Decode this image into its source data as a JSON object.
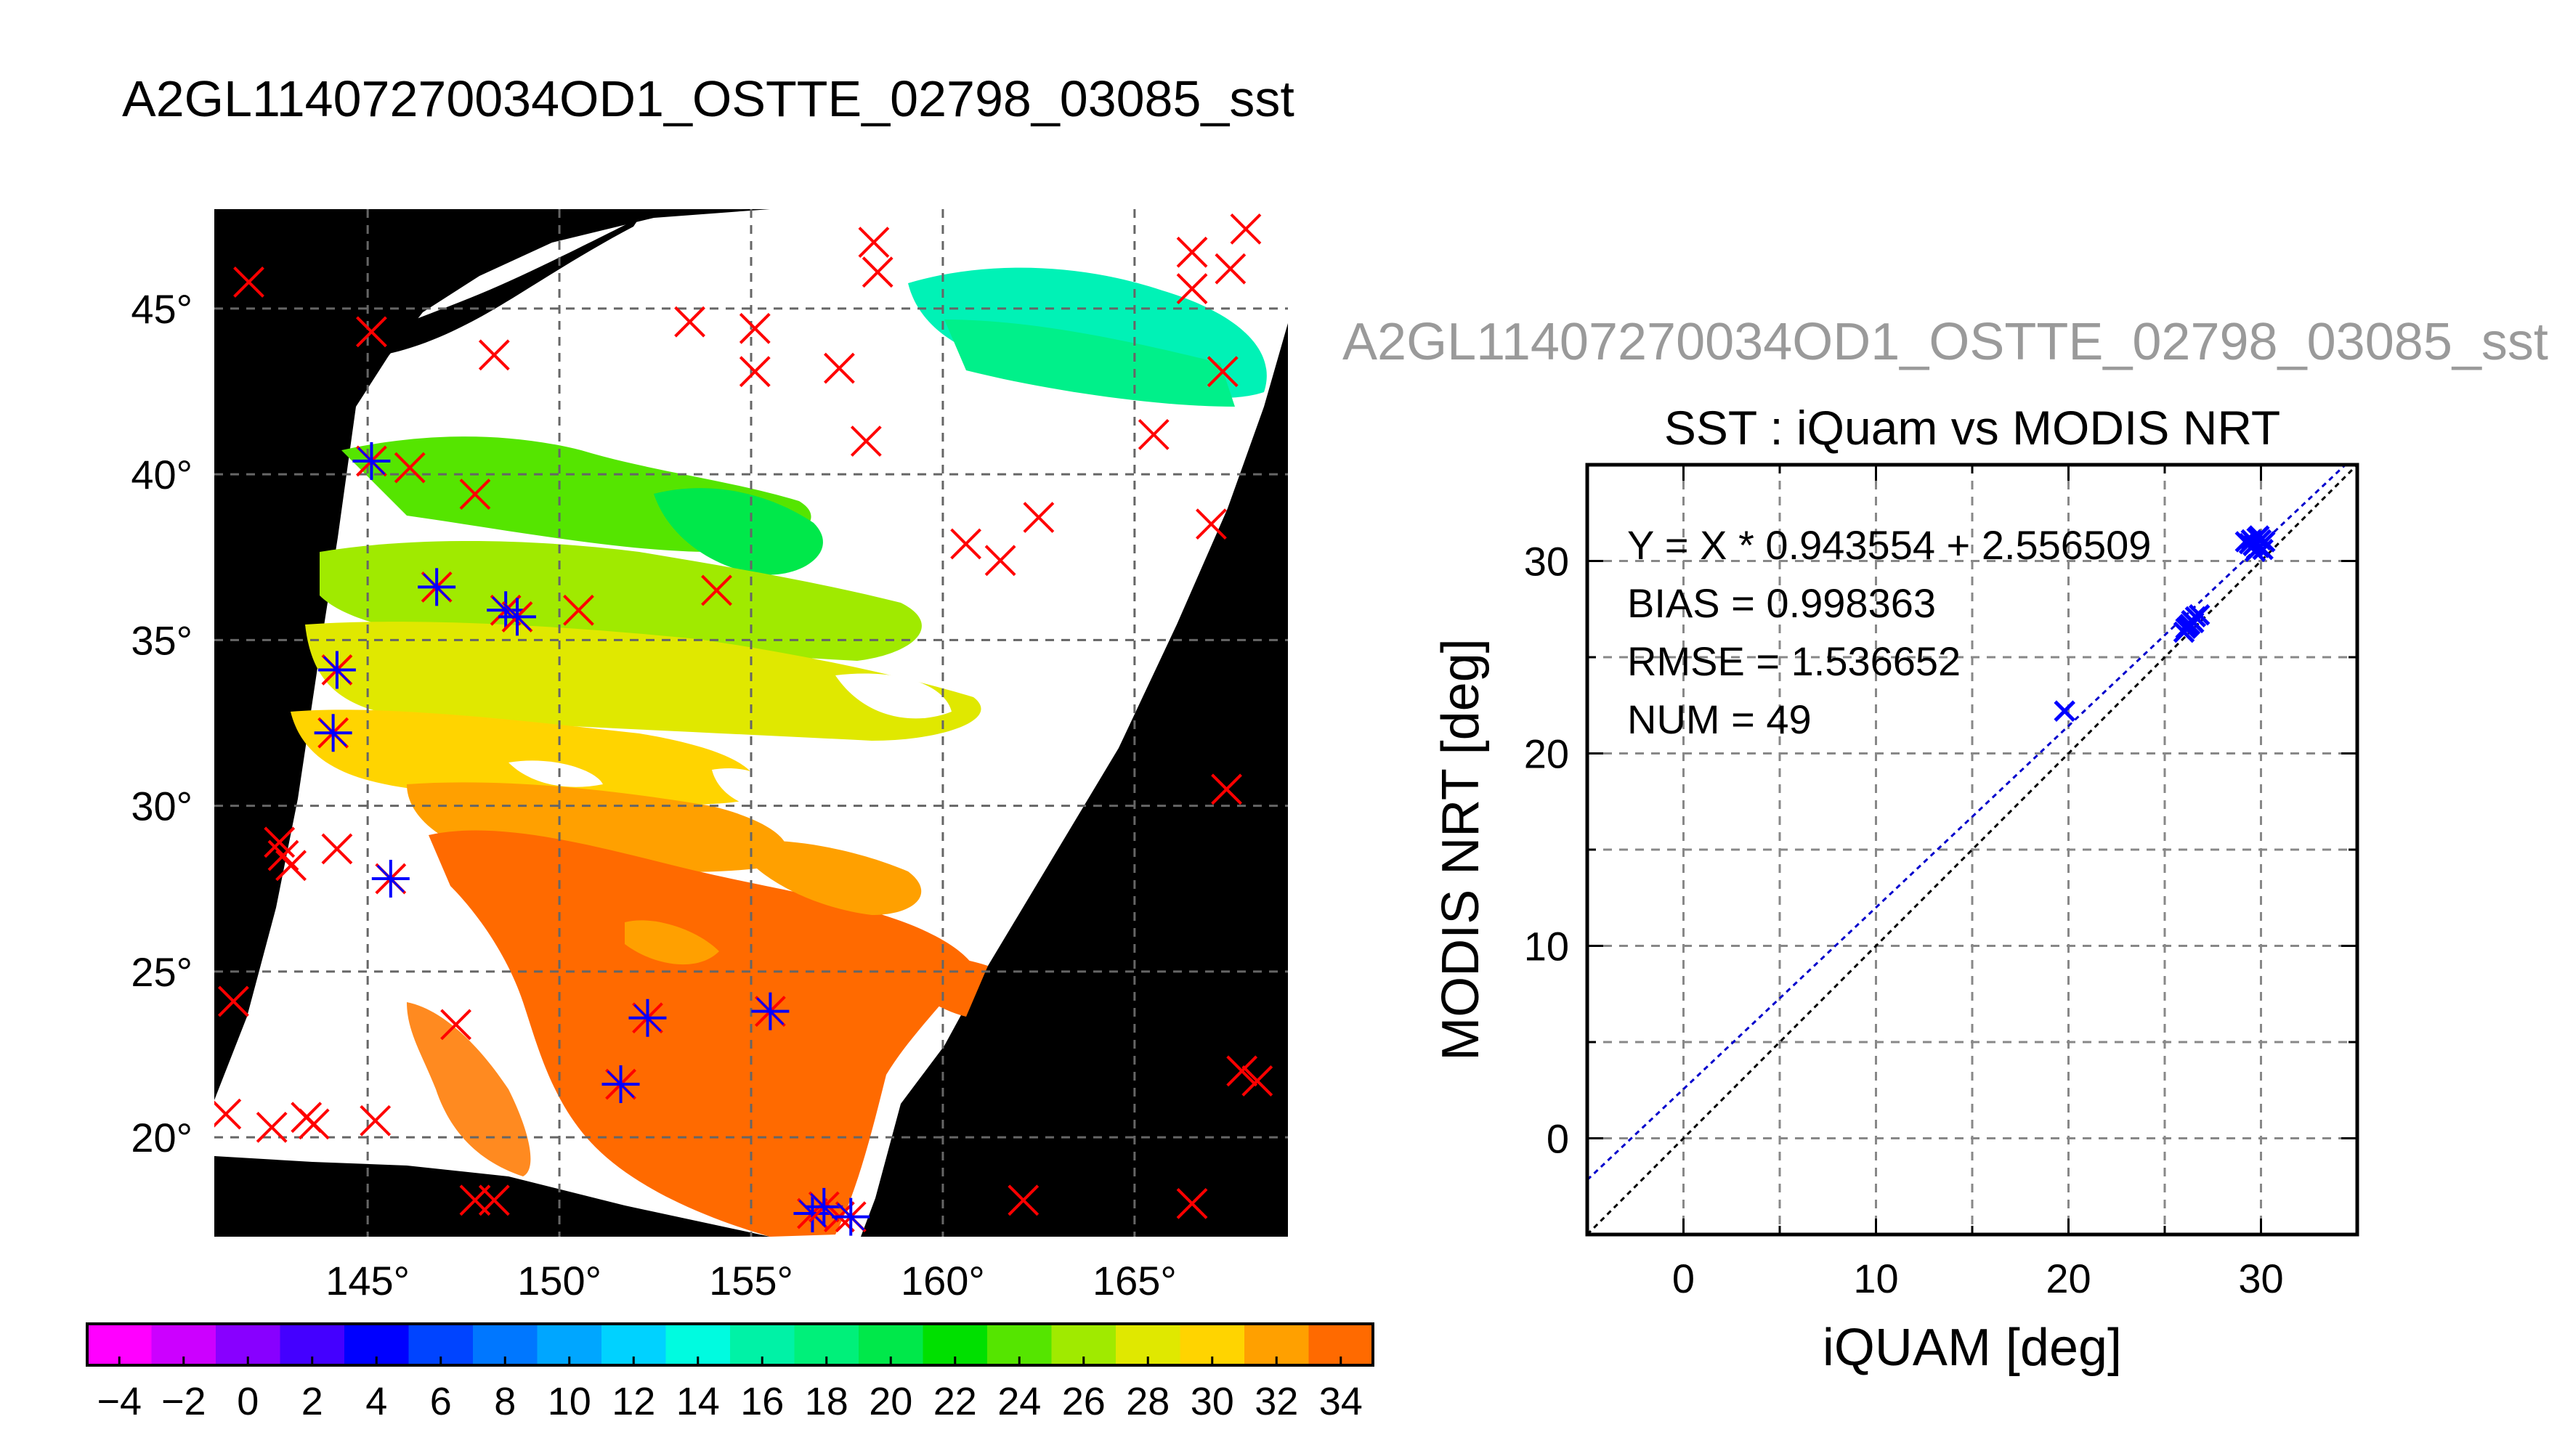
{
  "main_title": "A2GL11407270034OD1_OSTTE_02798_03085_sst",
  "map": {
    "lon_ticks": [
      145,
      150,
      155,
      160,
      165
    ],
    "lat_ticks": [
      20,
      25,
      30,
      35,
      40,
      45
    ],
    "deg_symbol": "°",
    "xlim": [
      141,
      169
    ],
    "ylim": [
      17,
      48
    ],
    "colorbar": {
      "min": -5,
      "max": 35,
      "step": 2,
      "tick_labels": [
        "−4",
        "−2",
        "0",
        "2",
        "4",
        "6",
        "8",
        "10",
        "12",
        "14",
        "16",
        "18",
        "20",
        "22",
        "24",
        "26",
        "28",
        "30",
        "32",
        "34"
      ],
      "colors": [
        "#ff00ff",
        "#cc00ff",
        "#8800ff",
        "#4400ff",
        "#0000ff",
        "#0044ff",
        "#0077ff",
        "#00a6ff",
        "#00d2ff",
        "#00fbe0",
        "#00f2a6",
        "#00f07a",
        "#00e84a",
        "#00e000",
        "#55e500",
        "#a0ea00",
        "#e0e800",
        "#ffd400",
        "#ffa000",
        "#ff6a00",
        "#ff2000"
      ]
    },
    "red_markers": [
      [
        141.9,
        45.8
      ],
      [
        145.1,
        44.3
      ],
      [
        148.3,
        43.6
      ],
      [
        153.4,
        44.6
      ],
      [
        155.1,
        44.4
      ],
      [
        155.1,
        43.1
      ],
      [
        157.3,
        43.2
      ],
      [
        158.2,
        47.0
      ],
      [
        158.3,
        46.1
      ],
      [
        166.5,
        46.7
      ],
      [
        166.5,
        45.6
      ],
      [
        167.5,
        46.2
      ],
      [
        167.9,
        47.4
      ],
      [
        167.3,
        43.1
      ],
      [
        158.0,
        41.0
      ],
      [
        165.5,
        41.2
      ],
      [
        167.0,
        38.5
      ],
      [
        146.1,
        40.2
      ],
      [
        147.8,
        39.4
      ],
      [
        160.6,
        37.9
      ],
      [
        161.5,
        37.4
      ],
      [
        162.5,
        38.7
      ],
      [
        150.5,
        35.9
      ],
      [
        154.1,
        36.5
      ],
      [
        142.7,
        28.9
      ],
      [
        142.8,
        28.5
      ],
      [
        143.0,
        28.2
      ],
      [
        144.2,
        28.7
      ],
      [
        167.4,
        30.5
      ],
      [
        147.3,
        23.4
      ],
      [
        141.5,
        24.1
      ],
      [
        141.3,
        20.7
      ],
      [
        142.5,
        20.3
      ],
      [
        143.4,
        20.6
      ],
      [
        143.6,
        20.4
      ],
      [
        145.2,
        20.5
      ],
      [
        147.8,
        18.1
      ],
      [
        148.3,
        18.1
      ],
      [
        157.3,
        17.6
      ],
      [
        162.1,
        18.1
      ],
      [
        166.5,
        18.0
      ],
      [
        167.8,
        22.0
      ],
      [
        168.2,
        21.7
      ]
    ],
    "mixed_markers": [
      [
        145.1,
        40.4
      ],
      [
        146.8,
        36.6
      ],
      [
        148.6,
        35.9
      ],
      [
        148.9,
        35.7
      ],
      [
        144.2,
        34.1
      ],
      [
        144.1,
        32.2
      ],
      [
        145.6,
        27.8
      ],
      [
        151.6,
        21.6
      ],
      [
        152.3,
        23.6
      ],
      [
        155.5,
        23.8
      ],
      [
        156.6,
        17.7
      ],
      [
        156.9,
        17.9
      ],
      [
        157.6,
        17.6
      ]
    ]
  },
  "scatter": {
    "subtitle": "A2GL11407270034OD1_OSTTE_02798_03085_sst",
    "chart_data": {
      "type": "scatter",
      "title": "SST : iQuam vs MODIS NRT",
      "xlabel": "iQUAM [deg]",
      "ylabel": "MODIS NRT [deg]",
      "xlim": [
        -5,
        35
      ],
      "ylim": [
        -5,
        35
      ],
      "xticks": [
        0,
        10,
        20,
        30
      ],
      "yticks": [
        0,
        10,
        20,
        30
      ],
      "grid": true,
      "fit_slope": 0.943554,
      "fit_intercept": 2.556509,
      "points": [
        [
          19.8,
          22.2
        ],
        [
          26.0,
          26.3
        ],
        [
          26.2,
          26.6
        ],
        [
          26.4,
          26.9
        ],
        [
          26.6,
          27.1
        ],
        [
          26.3,
          26.7
        ],
        [
          26.8,
          27.2
        ],
        [
          26.1,
          26.5
        ],
        [
          26.5,
          26.8
        ],
        [
          29.2,
          31.0
        ],
        [
          29.5,
          31.1
        ],
        [
          29.8,
          31.2
        ],
        [
          30.0,
          31.1
        ],
        [
          29.6,
          30.8
        ],
        [
          29.9,
          30.7
        ],
        [
          30.2,
          31.0
        ],
        [
          29.7,
          30.5
        ],
        [
          29.4,
          30.9
        ],
        [
          30.1,
          30.6
        ],
        [
          29.9,
          31.3
        ]
      ],
      "annotations": [
        "Y = X * 0.943554 + 2.556509",
        "BIAS = 0.998363",
        "RMSE = 1.536652",
        "NUM = 49"
      ]
    }
  },
  "colors": {
    "red_marker": "#ff0000",
    "blue_marker": "#0000ff",
    "fit_line": "#0000cc",
    "identity_line": "#000000",
    "grid": "#888888",
    "subtitle_gray": "#9a9a9a"
  }
}
